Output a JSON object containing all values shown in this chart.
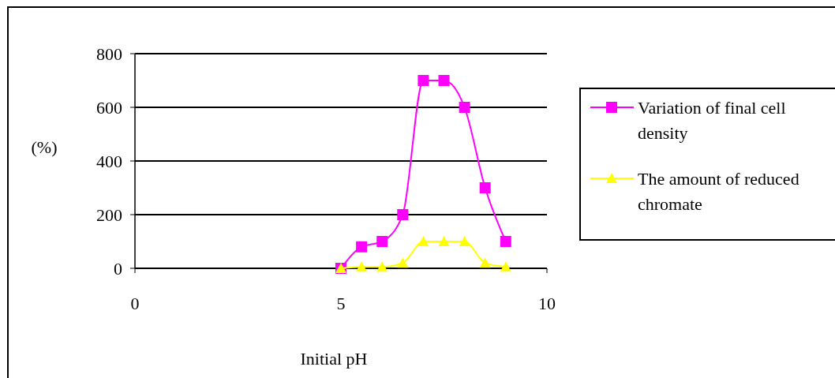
{
  "chart_data": {
    "type": "line",
    "xlabel": "Initial pH",
    "ylabel": "(%)",
    "x": [
      5,
      5.5,
      6,
      6.5,
      7,
      7.5,
      8,
      8.5,
      9
    ],
    "series": [
      {
        "name": "Variation of final cell density",
        "color": "#ff00ff",
        "marker": "square",
        "values": [
          0,
          80,
          100,
          200,
          700,
          700,
          600,
          300,
          100
        ]
      },
      {
        "name": "The amount of reduced chromate",
        "color": "#ffff00",
        "marker": "triangle",
        "values": [
          0,
          5,
          5,
          20,
          100,
          100,
          100,
          20,
          5
        ]
      }
    ],
    "xlim": [
      0,
      10
    ],
    "xticks": [
      0,
      5,
      10
    ],
    "ylim": [
      0,
      800
    ],
    "yticks": [
      0,
      200,
      400,
      600,
      800
    ],
    "grid": "y",
    "legend": "right"
  }
}
